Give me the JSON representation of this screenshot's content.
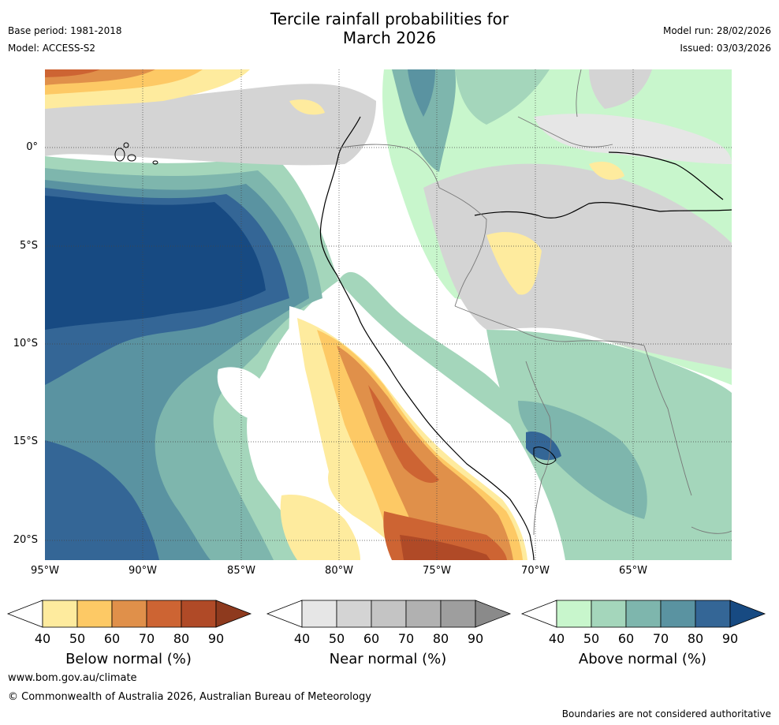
{
  "title_line1": "Tercile rainfall probabilities for",
  "title_line2": "March 2026",
  "base_period": "Base period: 1981-2018",
  "model": "Model: ACCESS-S2",
  "model_run": "Model run: 28/02/2026",
  "issued": "Issued: 03/03/2026",
  "lat_ticks": [
    "0°",
    "5°S",
    "10°S",
    "15°S",
    "20°S"
  ],
  "lon_ticks": [
    "95°W",
    "90°W",
    "85°W",
    "80°W",
    "75°W",
    "70°W",
    "65°W"
  ],
  "colorbars": {
    "below": {
      "label": "Below normal (%)",
      "ticks": [
        "40",
        "50",
        "60",
        "70",
        "80",
        "90"
      ],
      "colors": [
        "#ffffff",
        "#feeb9e",
        "#fdc965",
        "#e0904a",
        "#cd6433",
        "#b04a27",
        "#8e3a1e"
      ]
    },
    "near": {
      "label": "Near normal (%)",
      "ticks": [
        "40",
        "50",
        "60",
        "70",
        "80",
        "90"
      ],
      "colors": [
        "#ffffff",
        "#e6e6e6",
        "#d4d4d4",
        "#c4c4c4",
        "#b1b1b1",
        "#9e9e9e",
        "#8a8a8a"
      ]
    },
    "above": {
      "label": "Above normal (%)",
      "ticks": [
        "40",
        "50",
        "60",
        "70",
        "80",
        "90"
      ],
      "colors": [
        "#ffffff",
        "#c8f6cc",
        "#a4d6bb",
        "#7eb6ad",
        "#5a93a1",
        "#346696",
        "#174a82"
      ]
    }
  },
  "footer_url": "www.bom.gov.au/climate",
  "footer_copyright": "© Commonwealth of Australia 2026, Australian Bureau of Meteorology",
  "disclaimer": "Boundaries are not considered authoritative"
}
